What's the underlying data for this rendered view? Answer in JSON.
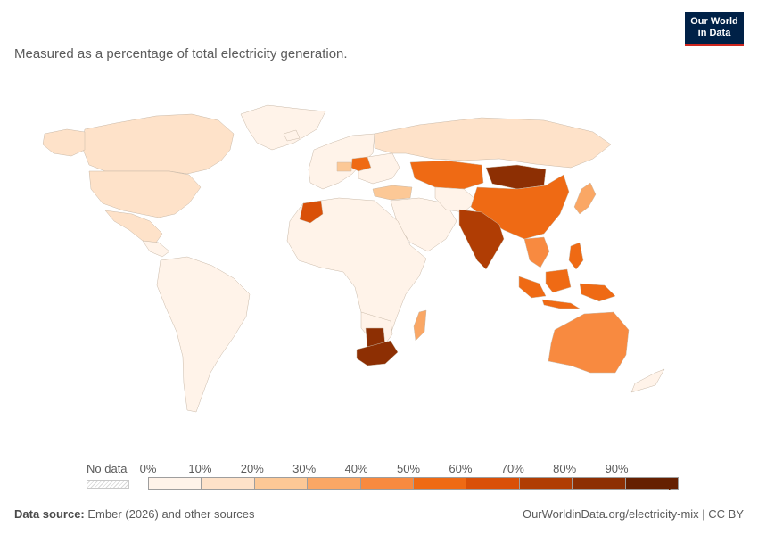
{
  "subtitle": "Measured as a percentage of total electricity generation.",
  "logo": {
    "line1": "Our World",
    "line2": "in Data",
    "bg": "#002147",
    "accent": "#ce261e"
  },
  "legend": {
    "no_data_label": "No data",
    "ticks": [
      "0%",
      "10%",
      "20%",
      "30%",
      "40%",
      "50%",
      "60%",
      "70%",
      "80%",
      "90%"
    ],
    "bins": [
      {
        "range": [
          0,
          10
        ],
        "color": "#fff3e9"
      },
      {
        "range": [
          10,
          20
        ],
        "color": "#fee2c9"
      },
      {
        "range": [
          20,
          30
        ],
        "color": "#fcc896"
      },
      {
        "range": [
          30,
          40
        ],
        "color": "#faa765"
      },
      {
        "range": [
          40,
          50
        ],
        "color": "#f88a40"
      },
      {
        "range": [
          50,
          60
        ],
        "color": "#ef6a14"
      },
      {
        "range": [
          60,
          70
        ],
        "color": "#d95008"
      },
      {
        "range": [
          70,
          80
        ],
        "color": "#b03d04"
      },
      {
        "range": [
          80,
          90
        ],
        "color": "#8d2f03"
      },
      {
        "range": [
          90,
          100
        ],
        "color": "#652001"
      }
    ]
  },
  "regions": [
    {
      "name": "Canada",
      "bin": 1
    },
    {
      "name": "United States",
      "bin": 1
    },
    {
      "name": "Mexico",
      "bin": 1
    },
    {
      "name": "Greenland",
      "bin": 0
    },
    {
      "name": "South America",
      "bin": 0
    },
    {
      "name": "Western Europe",
      "bin": 0
    },
    {
      "name": "Poland",
      "bin": 5
    },
    {
      "name": "Czechia",
      "bin": 2
    },
    {
      "name": "Turkey",
      "bin": 2
    },
    {
      "name": "Russia",
      "bin": 1
    },
    {
      "name": "Kazakhstan",
      "bin": 5
    },
    {
      "name": "Mongolia",
      "bin": 8
    },
    {
      "name": "China",
      "bin": 5
    },
    {
      "name": "India",
      "bin": 7
    },
    {
      "name": "Morocco",
      "bin": 6
    },
    {
      "name": "South Africa",
      "bin": 8
    },
    {
      "name": "Botswana",
      "bin": 8
    },
    {
      "name": "Indonesia",
      "bin": 5
    },
    {
      "name": "Australia",
      "bin": 4
    },
    {
      "name": "Japan",
      "bin": 3
    },
    {
      "name": "Vietnam",
      "bin": 4
    },
    {
      "name": "Philippines",
      "bin": 5
    },
    {
      "name": "Madagascar",
      "bin": 3
    }
  ],
  "footer": {
    "source_label": "Data source:",
    "source_text": " Ember (2026) and other sources",
    "url_text": "OurWorldinData.org/electricity-mix | CC BY"
  }
}
